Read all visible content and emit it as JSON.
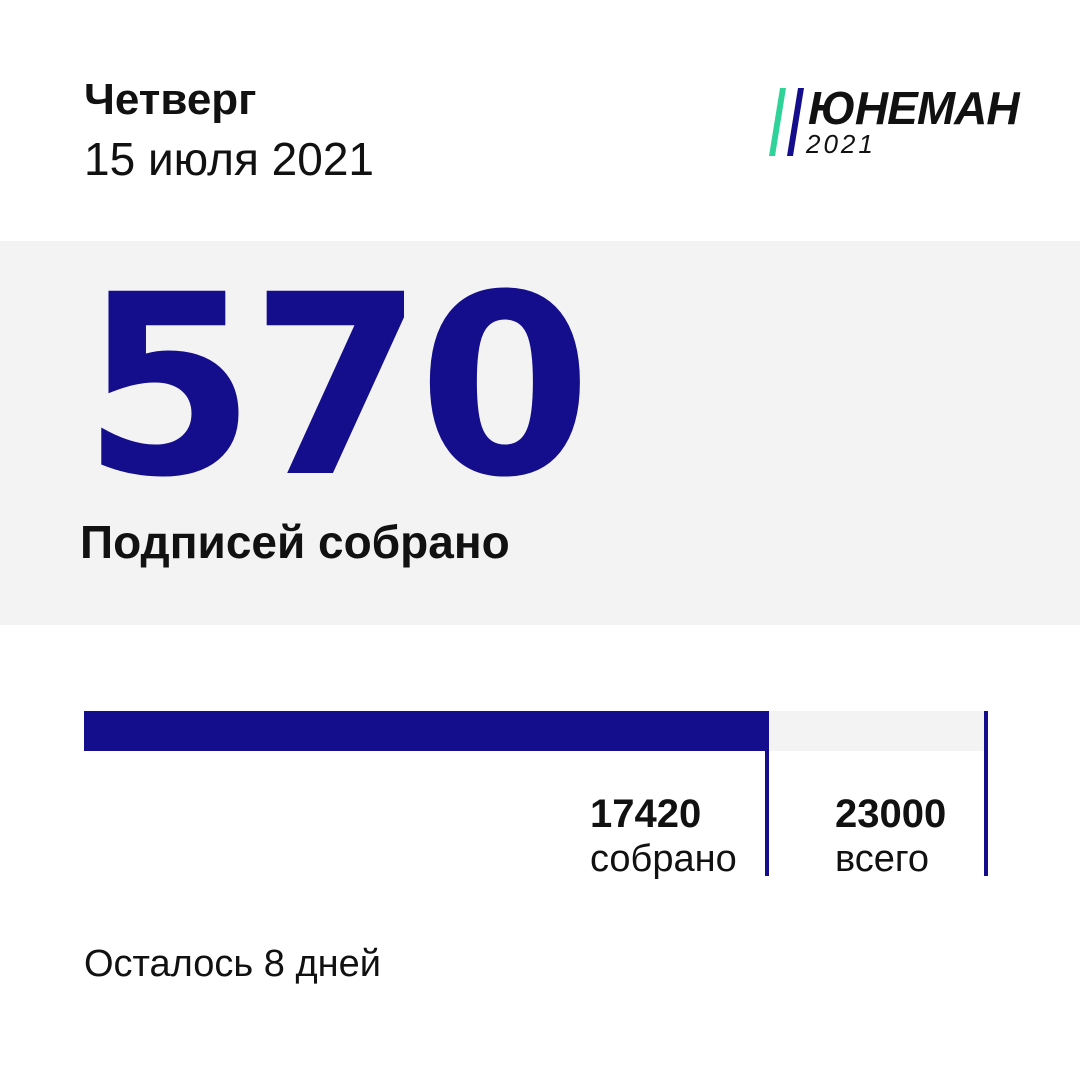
{
  "header": {
    "weekday": "Четверг",
    "date": "15 июля 2021"
  },
  "logo": {
    "name": "ЮНЕМАН",
    "year": "2021",
    "stripe_colors": [
      "#2fd39a",
      "#140d8c"
    ]
  },
  "highlight": {
    "count": "570",
    "caption": "Подписей собрано"
  },
  "progress": {
    "collected_value": "17420",
    "collected_label": "собрано",
    "total_value": "23000",
    "total_label": "всего",
    "fraction": 0.7574
  },
  "footer": {
    "remaining": "Осталось 8 дней"
  },
  "colors": {
    "accent": "#140d8c",
    "band_background": "#f3f3f3",
    "logo_green": "#2fd39a"
  }
}
